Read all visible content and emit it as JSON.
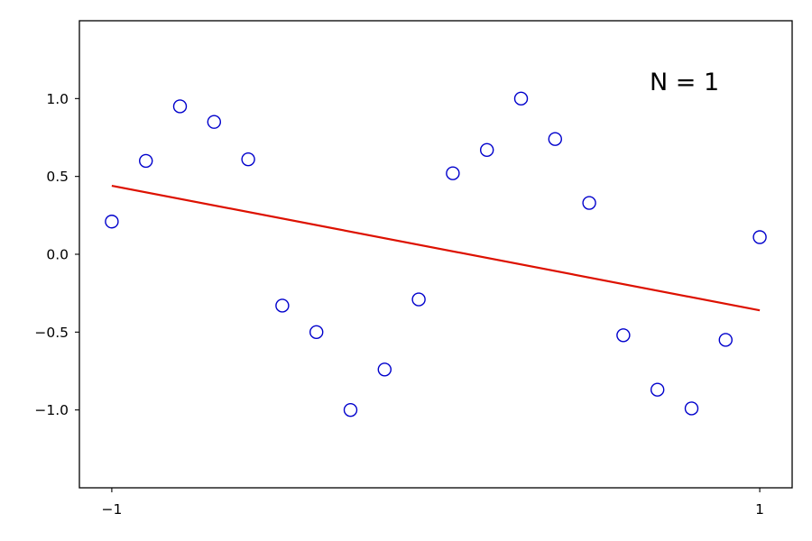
{
  "chart_data": {
    "type": "scatter",
    "title": "",
    "xlabel": "",
    "ylabel": "",
    "xlim": [
      -1.1,
      1.1
    ],
    "ylim": [
      -1.5,
      1.5
    ],
    "x_ticks": [
      -1,
      1
    ],
    "x_tick_labels": [
      "−1",
      "1"
    ],
    "y_ticks": [
      1.0,
      0.5,
      0.0,
      -0.5,
      -1.0
    ],
    "y_tick_labels": [
      "1.0",
      "0.5",
      "0.0",
      "−0.5",
      "−1.0"
    ],
    "grid": false,
    "legend": "none",
    "annotation": "N = 1",
    "series": [
      {
        "type": "scatter",
        "marker": "open-circle",
        "color": "#0000cc",
        "x": [
          -1.0,
          -0.8947,
          -0.7895,
          -0.6842,
          -0.5789,
          -0.4737,
          -0.3684,
          -0.2632,
          -0.1579,
          -0.0526,
          0.0526,
          0.1579,
          0.2632,
          0.3684,
          0.4737,
          0.5789,
          0.6842,
          0.7895,
          0.8947,
          1.0
        ],
        "y": [
          0.21,
          0.6,
          0.95,
          0.85,
          0.61,
          -0.33,
          -0.5,
          -1.0,
          -0.74,
          -0.29,
          0.52,
          0.67,
          1.0,
          0.74,
          0.33,
          -0.52,
          -0.87,
          -0.99,
          -0.55,
          0.11
        ]
      },
      {
        "type": "line",
        "color": "#dd1100",
        "x": [
          -1.0,
          1.0
        ],
        "y": [
          0.44,
          -0.36
        ]
      }
    ]
  }
}
